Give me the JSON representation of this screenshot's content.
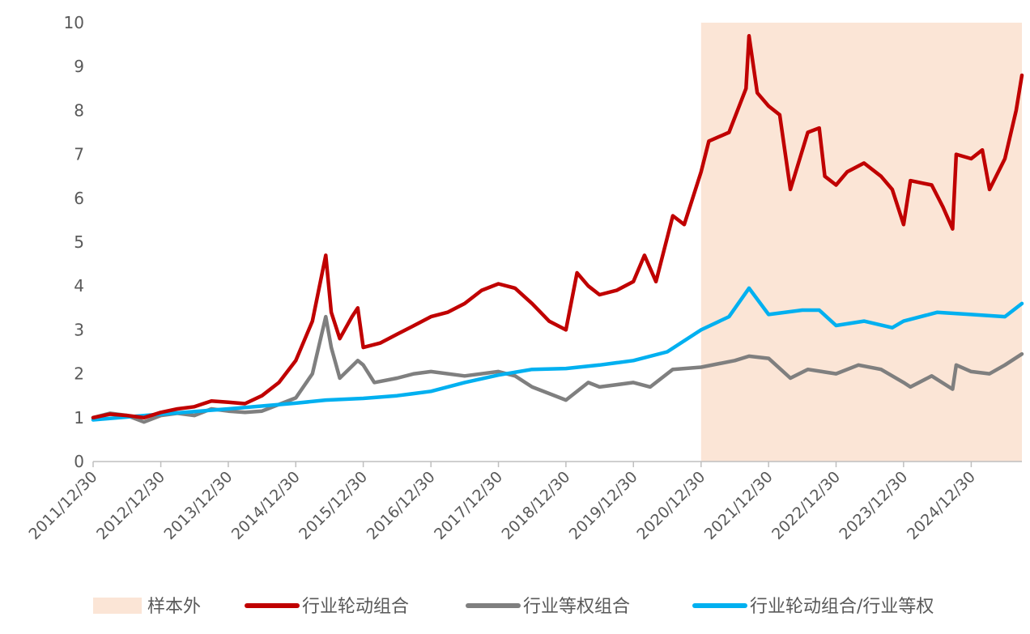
{
  "chart_data": {
    "type": "line",
    "title": "",
    "xlabel": "",
    "ylabel": "",
    "ylim": [
      0,
      10
    ],
    "yticks": [
      0,
      1,
      2,
      3,
      4,
      5,
      6,
      7,
      8,
      9,
      10
    ],
    "xticks": [
      "2011/12/30",
      "2012/12/30",
      "2013/12/30",
      "2014/12/30",
      "2015/12/30",
      "2016/12/30",
      "2017/12/30",
      "2018/12/30",
      "2019/12/30",
      "2020/12/30",
      "2021/12/30",
      "2022/12/30",
      "2023/12/30",
      "2024/12/30"
    ],
    "shaded_region": {
      "label": "样本外",
      "from": "2020/12/30",
      "to": "2025/09/30",
      "color": "#fbe5d6"
    },
    "legend_position": "bottom",
    "grid": false,
    "series": [
      {
        "name": "行业轮动组合",
        "color": "#c00000",
        "points": [
          [
            "2011/12/30",
            1.0
          ],
          [
            "2012/03/30",
            1.08
          ],
          [
            "2012/06/30",
            1.05
          ],
          [
            "2012/09/30",
            1.0
          ],
          [
            "2012/12/30",
            1.12
          ],
          [
            "2013/03/30",
            1.2
          ],
          [
            "2013/06/30",
            1.25
          ],
          [
            "2013/09/30",
            1.38
          ],
          [
            "2013/12/30",
            1.35
          ],
          [
            "2014/03/30",
            1.32
          ],
          [
            "2014/06/30",
            1.5
          ],
          [
            "2014/09/30",
            1.8
          ],
          [
            "2014/12/30",
            2.3
          ],
          [
            "2015/03/30",
            3.2
          ],
          [
            "2015/06/10",
            4.7
          ],
          [
            "2015/07/10",
            3.4
          ],
          [
            "2015/08/25",
            2.8
          ],
          [
            "2015/10/30",
            3.3
          ],
          [
            "2015/11/30",
            3.5
          ],
          [
            "2015/12/30",
            2.6
          ],
          [
            "2016/03/30",
            2.7
          ],
          [
            "2016/06/30",
            2.9
          ],
          [
            "2016/09/30",
            3.1
          ],
          [
            "2016/12/30",
            3.3
          ],
          [
            "2017/03/30",
            3.4
          ],
          [
            "2017/06/30",
            3.6
          ],
          [
            "2017/09/30",
            3.9
          ],
          [
            "2017/12/30",
            4.05
          ],
          [
            "2018/03/30",
            3.95
          ],
          [
            "2018/06/30",
            3.6
          ],
          [
            "2018/09/30",
            3.2
          ],
          [
            "2018/12/30",
            3.0
          ],
          [
            "2019/02/28",
            4.3
          ],
          [
            "2019/04/30",
            4.0
          ],
          [
            "2019/06/30",
            3.8
          ],
          [
            "2019/09/30",
            3.9
          ],
          [
            "2019/12/30",
            4.1
          ],
          [
            "2020/02/28",
            4.7
          ],
          [
            "2020/04/30",
            4.1
          ],
          [
            "2020/07/30",
            5.6
          ],
          [
            "2020/09/30",
            5.4
          ],
          [
            "2020/12/30",
            6.6
          ],
          [
            "2021/02/10",
            7.3
          ],
          [
            "2021/05/30",
            7.5
          ],
          [
            "2021/08/30",
            8.5
          ],
          [
            "2021/09/15",
            9.7
          ],
          [
            "2021/10/30",
            8.4
          ],
          [
            "2021/12/30",
            8.1
          ],
          [
            "2022/02/28",
            7.9
          ],
          [
            "2022/04/27",
            6.2
          ],
          [
            "2022/07/30",
            7.5
          ],
          [
            "2022/09/30",
            7.6
          ],
          [
            "2022/10/30",
            6.5
          ],
          [
            "2022/12/30",
            6.3
          ],
          [
            "2023/02/28",
            6.6
          ],
          [
            "2023/05/30",
            6.8
          ],
          [
            "2023/08/30",
            6.5
          ],
          [
            "2023/10/30",
            6.2
          ],
          [
            "2023/12/30",
            5.4
          ],
          [
            "2024/02/05",
            6.4
          ],
          [
            "2024/05/30",
            6.3
          ],
          [
            "2024/07/30",
            5.8
          ],
          [
            "2024/09/20",
            5.3
          ],
          [
            "2024/10/10",
            7.0
          ],
          [
            "2024/12/30",
            6.9
          ],
          [
            "2025/02/28",
            7.1
          ],
          [
            "2025/04/08",
            6.2
          ],
          [
            "2025/06/30",
            6.9
          ],
          [
            "2025/08/30",
            8.0
          ],
          [
            "2025/09/30",
            8.8
          ]
        ]
      },
      {
        "name": "行业等权组合",
        "color": "#7f7f7f",
        "points": [
          [
            "2011/12/30",
            1.0
          ],
          [
            "2012/03/30",
            1.1
          ],
          [
            "2012/06/30",
            1.05
          ],
          [
            "2012/09/30",
            0.9
          ],
          [
            "2012/12/30",
            1.05
          ],
          [
            "2013/03/30",
            1.1
          ],
          [
            "2013/06/30",
            1.05
          ],
          [
            "2013/09/30",
            1.2
          ],
          [
            "2013/12/30",
            1.15
          ],
          [
            "2014/03/30",
            1.12
          ],
          [
            "2014/06/30",
            1.15
          ],
          [
            "2014/09/30",
            1.3
          ],
          [
            "2014/12/30",
            1.45
          ],
          [
            "2015/03/30",
            2.0
          ],
          [
            "2015/06/10",
            3.3
          ],
          [
            "2015/07/10",
            2.6
          ],
          [
            "2015/08/25",
            1.9
          ],
          [
            "2015/11/30",
            2.3
          ],
          [
            "2015/12/30",
            2.2
          ],
          [
            "2016/02/28",
            1.8
          ],
          [
            "2016/06/30",
            1.9
          ],
          [
            "2016/09/30",
            2.0
          ],
          [
            "2016/12/30",
            2.05
          ],
          [
            "2017/06/30",
            1.95
          ],
          [
            "2017/12/30",
            2.05
          ],
          [
            "2018/03/30",
            1.95
          ],
          [
            "2018/06/30",
            1.7
          ],
          [
            "2018/09/30",
            1.55
          ],
          [
            "2018/12/30",
            1.4
          ],
          [
            "2019/04/30",
            1.8
          ],
          [
            "2019/06/30",
            1.7
          ],
          [
            "2019/12/30",
            1.8
          ],
          [
            "2020/03/30",
            1.7
          ],
          [
            "2020/07/30",
            2.1
          ],
          [
            "2020/12/30",
            2.15
          ],
          [
            "2021/06/30",
            2.3
          ],
          [
            "2021/09/15",
            2.4
          ],
          [
            "2021/12/30",
            2.35
          ],
          [
            "2022/04/27",
            1.9
          ],
          [
            "2022/07/30",
            2.1
          ],
          [
            "2022/12/30",
            2.0
          ],
          [
            "2023/04/30",
            2.2
          ],
          [
            "2023/08/30",
            2.1
          ],
          [
            "2023/12/30",
            1.8
          ],
          [
            "2024/02/05",
            1.7
          ],
          [
            "2024/05/30",
            1.95
          ],
          [
            "2024/09/20",
            1.65
          ],
          [
            "2024/10/10",
            2.2
          ],
          [
            "2024/12/30",
            2.05
          ],
          [
            "2025/04/08",
            2.0
          ],
          [
            "2025/06/30",
            2.2
          ],
          [
            "2025/09/30",
            2.45
          ]
        ]
      },
      {
        "name": "行业轮动组合/行业等权",
        "color": "#00b0f0",
        "points": [
          [
            "2011/12/30",
            0.95
          ],
          [
            "2012/12/30",
            1.08
          ],
          [
            "2013/12/30",
            1.2
          ],
          [
            "2014/12/30",
            1.33
          ],
          [
            "2015/06/10",
            1.4
          ],
          [
            "2015/12/30",
            1.44
          ],
          [
            "2016/06/30",
            1.5
          ],
          [
            "2016/12/30",
            1.6
          ],
          [
            "2017/06/30",
            1.8
          ],
          [
            "2017/12/30",
            1.97
          ],
          [
            "2018/06/30",
            2.1
          ],
          [
            "2018/12/30",
            2.12
          ],
          [
            "2019/06/30",
            2.2
          ],
          [
            "2019/12/30",
            2.3
          ],
          [
            "2020/06/30",
            2.5
          ],
          [
            "2020/12/30",
            3.0
          ],
          [
            "2021/05/30",
            3.3
          ],
          [
            "2021/09/15",
            3.95
          ],
          [
            "2021/12/30",
            3.35
          ],
          [
            "2022/06/30",
            3.45
          ],
          [
            "2022/09/30",
            3.45
          ],
          [
            "2022/12/30",
            3.1
          ],
          [
            "2023/05/30",
            3.2
          ],
          [
            "2023/10/30",
            3.05
          ],
          [
            "2023/12/30",
            3.2
          ],
          [
            "2024/06/30",
            3.4
          ],
          [
            "2024/12/30",
            3.35
          ],
          [
            "2025/06/30",
            3.3
          ],
          [
            "2025/09/30",
            3.6
          ]
        ]
      }
    ]
  }
}
